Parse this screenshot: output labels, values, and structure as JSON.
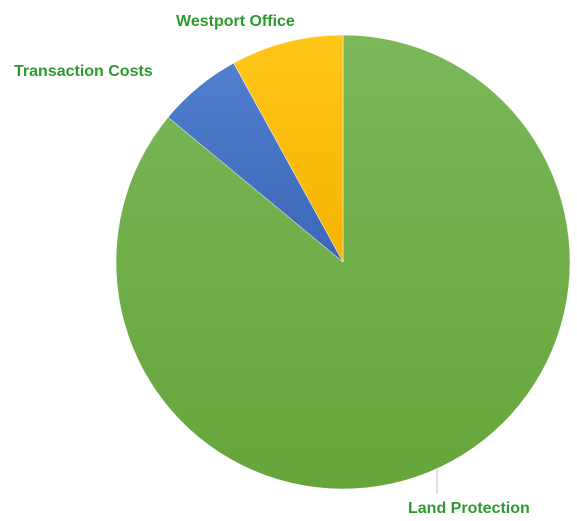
{
  "chart_data": {
    "type": "pie",
    "title": "",
    "legend": "none",
    "start_angle_deg": 0,
    "direction": "clockwise",
    "slices": [
      {
        "label": "Land Protection",
        "value": 86,
        "color": "#70ad47"
      },
      {
        "label": "Transaction Costs",
        "value": 6,
        "color": "#4472c4"
      },
      {
        "label": "Westport Office",
        "value": 8,
        "color": "#ffc000"
      }
    ],
    "label_color": "#2e9a2e"
  }
}
